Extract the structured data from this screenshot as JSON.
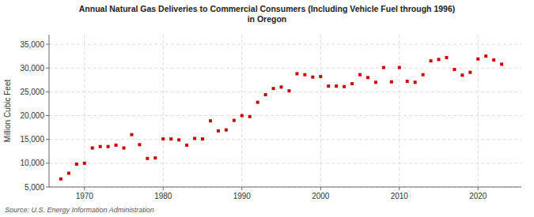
{
  "chart_data": {
    "type": "scatter",
    "title": "Annual Natural Gas Deliveries to Commercial Consumers (Including Vehicle Fuel through 1996)\nin Oregon",
    "y_label": "Million Cubic Feet",
    "source": "Source: U.S. Energy Information Administration",
    "color": "#cc0000",
    "marker": "square",
    "grid": true,
    "x": [
      1967,
      1968,
      1969,
      1970,
      1971,
      1972,
      1973,
      1974,
      1975,
      1976,
      1977,
      1978,
      1979,
      1980,
      1981,
      1982,
      1983,
      1984,
      1985,
      1986,
      1987,
      1988,
      1989,
      1990,
      1991,
      1992,
      1993,
      1994,
      1995,
      1996,
      1997,
      1998,
      1999,
      2000,
      2001,
      2002,
      2003,
      2004,
      2005,
      2006,
      2007,
      2008,
      2009,
      2010,
      2011,
      2012,
      2013,
      2014,
      2015,
      2016,
      2017,
      2018,
      2019,
      2020,
      2021,
      2022,
      2023
    ],
    "values": [
      6700,
      7900,
      9800,
      10000,
      13200,
      13500,
      13500,
      13800,
      13200,
      16000,
      13900,
      11000,
      11100,
      15100,
      15100,
      14900,
      13800,
      15200,
      15100,
      18900,
      16800,
      17000,
      19000,
      20000,
      19800,
      22800,
      24400,
      25700,
      26000,
      25200,
      28800,
      28600,
      28100,
      28200,
      26200,
      26200,
      26100,
      26700,
      28600,
      28000,
      27000,
      30100,
      27100,
      30100,
      27200,
      27000,
      28600,
      31500,
      31800,
      32200,
      29700,
      28500,
      29100,
      31900,
      32500,
      31700,
      30800
    ],
    "xlim": [
      1965.5,
      2025.5
    ],
    "xticks": [
      1970,
      1980,
      1990,
      2000,
      2010,
      2020
    ],
    "ylim": [
      5000,
      37000
    ],
    "yticks": [
      {
        "value": 5000,
        "label": "5,000"
      },
      {
        "value": 10000,
        "label": "10,000"
      },
      {
        "value": 15000,
        "label": "15,000"
      },
      {
        "value": 20000,
        "label": "20,000"
      },
      {
        "value": 25000,
        "label": "25,000"
      },
      {
        "value": 30000,
        "label": "30,000"
      },
      {
        "value": 35000,
        "label": "35,000"
      }
    ]
  }
}
